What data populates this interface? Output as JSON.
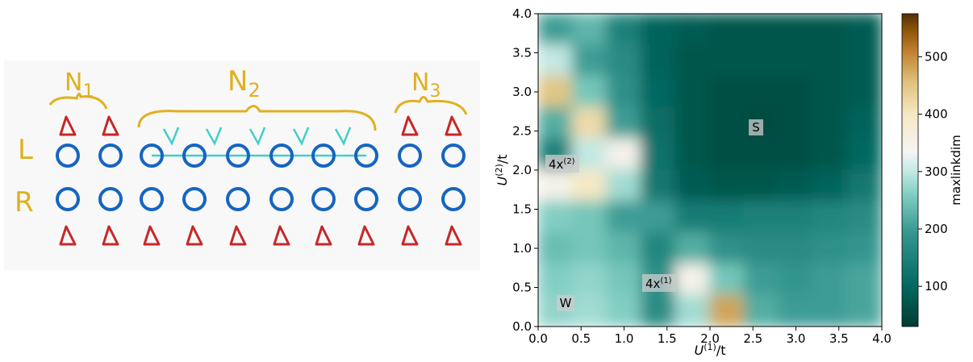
{
  "schematic": {
    "rows": [
      "L",
      "R"
    ],
    "groups": [
      {
        "text": "N",
        "sub": "1"
      },
      {
        "text": "N",
        "sub": "2"
      },
      {
        "text": "N",
        "sub": "3"
      }
    ]
  },
  "chart_data": {
    "type": "heatmap",
    "xlabel": {
      "text": "U",
      "sup": "(1)",
      "tail": "/t"
    },
    "ylabel": {
      "text": "U",
      "sup": "(2)",
      "tail": "/t"
    },
    "colorbar_label": "maxlinkdim",
    "annotations": [
      {
        "text": "S"
      },
      {
        "text": "4x",
        "sup": "(2)"
      },
      {
        "text": "4x",
        "sup": "(1)"
      },
      {
        "text": "W"
      }
    ],
    "xlim": [
      0,
      4
    ],
    "ylim": [
      0,
      4
    ],
    "xticks": [
      {
        "value": 0,
        "label": "0.0"
      },
      {
        "value": 0.5,
        "label": "0.5"
      },
      {
        "value": 1,
        "label": "1.0"
      },
      {
        "value": 1.5,
        "label": "1.5"
      },
      {
        "value": 2,
        "label": "2.0"
      },
      {
        "value": 2.5,
        "label": "2.5"
      },
      {
        "value": 3,
        "label": "3.0"
      },
      {
        "value": 3.5,
        "label": "3.5"
      },
      {
        "value": 4,
        "label": "4.0"
      }
    ],
    "yticks": [
      {
        "value": 0,
        "label": "0.0"
      },
      {
        "value": 0.5,
        "label": "0.5"
      },
      {
        "value": 1,
        "label": "1.0"
      },
      {
        "value": 1.5,
        "label": "1.5"
      },
      {
        "value": 2,
        "label": "2.0"
      },
      {
        "value": 2.5,
        "label": "2.5"
      },
      {
        "value": 3,
        "label": "3.0"
      },
      {
        "value": 3.5,
        "label": "3.5"
      },
      {
        "value": 4,
        "label": "4.0"
      }
    ],
    "x": [
      0.2,
      0.6,
      1.0,
      1.4,
      1.8,
      2.2,
      2.6,
      3.0,
      3.4,
      3.8
    ],
    "y": [
      3.8,
      3.4,
      3.0,
      2.6,
      2.2,
      1.8,
      1.4,
      1.0,
      0.6,
      0.2
    ],
    "z": [
      [
        200,
        230,
        150,
        90,
        80,
        70,
        70,
        70,
        70,
        80
      ],
      [
        300,
        200,
        170,
        90,
        70,
        70,
        70,
        70,
        70,
        80
      ],
      [
        450,
        250,
        180,
        100,
        70,
        60,
        60,
        60,
        70,
        80
      ],
      [
        220,
        420,
        200,
        110,
        70,
        60,
        55,
        60,
        70,
        90
      ],
      [
        150,
        300,
        350,
        120,
        70,
        60,
        60,
        60,
        70,
        100
      ],
      [
        350,
        400,
        280,
        130,
        80,
        70,
        70,
        80,
        90,
        130
      ],
      [
        260,
        250,
        200,
        200,
        140,
        140,
        150,
        150,
        160,
        170
      ],
      [
        240,
        250,
        230,
        160,
        220,
        180,
        170,
        170,
        180,
        190
      ],
      [
        260,
        270,
        250,
        180,
        350,
        250,
        200,
        190,
        200,
        210
      ],
      [
        270,
        280,
        260,
        170,
        280,
        480,
        220,
        200,
        200,
        210
      ]
    ],
    "zlim": [
      30,
      575
    ],
    "zticks": [
      100,
      200,
      300,
      400,
      500
    ],
    "colormap": "BrBG_r"
  }
}
